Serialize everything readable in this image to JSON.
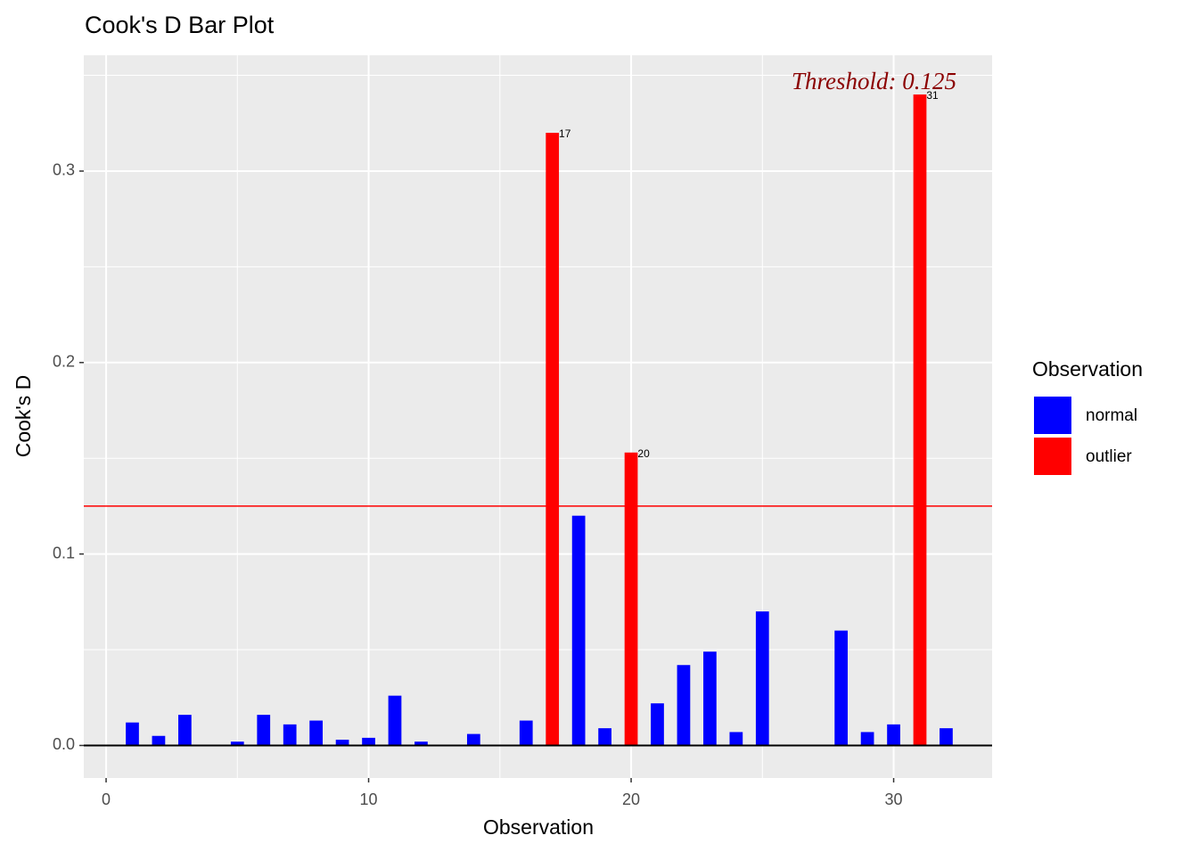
{
  "chart_data": {
    "type": "bar",
    "title": "Cook's D Bar Plot",
    "xlabel": "Observation",
    "ylabel": "Cook's D",
    "legend_title": "Observation",
    "x": [
      1,
      2,
      3,
      4,
      5,
      6,
      7,
      8,
      9,
      10,
      11,
      12,
      13,
      14,
      15,
      16,
      17,
      18,
      19,
      20,
      21,
      22,
      23,
      24,
      25,
      26,
      27,
      28,
      29,
      30,
      31,
      32
    ],
    "series": [
      {
        "name": "normal",
        "color": "#0000ff",
        "values": [
          0.012,
          0.005,
          0.016,
          0,
          0.002,
          0.016,
          0.011,
          0.013,
          0.003,
          0.004,
          0.026,
          0.002,
          0,
          0.006,
          0,
          0.013,
          null,
          0.12,
          0.009,
          null,
          0.022,
          0.042,
          0.049,
          0.007,
          0.07,
          0,
          0,
          0.06,
          0.007,
          0.011,
          null,
          0.009
        ]
      },
      {
        "name": "outlier",
        "color": "#ff0000",
        "values": [
          null,
          null,
          null,
          null,
          null,
          null,
          null,
          null,
          null,
          null,
          null,
          null,
          null,
          null,
          null,
          null,
          0.32,
          null,
          null,
          0.153,
          null,
          null,
          null,
          null,
          null,
          null,
          null,
          null,
          null,
          null,
          0.34,
          null
        ]
      }
    ],
    "threshold": 0.125,
    "threshold_label": "Threshold: 0.125",
    "threshold_color": "#ff0000",
    "xlim": [
      -0.85,
      33.75
    ],
    "xticks": [
      0,
      10,
      20,
      30
    ],
    "ylim": [
      -0.017,
      0.3605
    ],
    "yticks": [
      {
        "value": 0,
        "label": "0.0"
      },
      0.1,
      0.2,
      0.3
    ],
    "grid": true,
    "legend_position": "right"
  }
}
